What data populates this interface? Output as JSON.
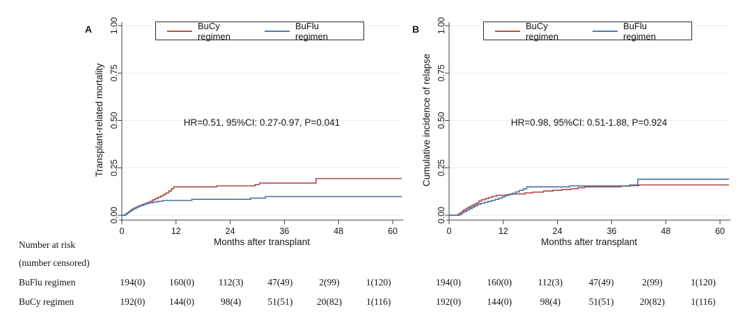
{
  "legend": {
    "items": [
      {
        "label": "BuCy regimen",
        "color": "#b05150"
      },
      {
        "label": "BuFlu regimen",
        "color": "#537aa5"
      }
    ]
  },
  "colors": {
    "grid": "#e2edf0",
    "axis": "#3c3c3c",
    "text": "#161616"
  },
  "chart_data": [
    {
      "type": "line",
      "step": true,
      "panel": "A",
      "ylabel": "Transplant-related mortality",
      "xlabel": "Months after transplant",
      "annotation": "HR=0.51, 95%CI: 0.27-0.97, P=0.041",
      "xlim": [
        0,
        62
      ],
      "ylim": [
        0,
        1
      ],
      "x_ticks": [
        0,
        12,
        24,
        36,
        48,
        60
      ],
      "y_ticks": [
        0,
        0.25,
        0.5,
        0.75,
        1
      ],
      "y_tick_labels": [
        "0.00",
        "0.25",
        "0.50",
        "0.75",
        "1.00"
      ],
      "grid": true,
      "legend_position": "top",
      "series": [
        {
          "name": "BuCy regimen",
          "color": "#b05150",
          "points": [
            [
              0,
              0
            ],
            [
              0.7,
              0.005
            ],
            [
              1.1,
              0.012
            ],
            [
              1.5,
              0.018
            ],
            [
              1.9,
              0.025
            ],
            [
              2.3,
              0.032
            ],
            [
              2.8,
              0.038
            ],
            [
              3.3,
              0.044
            ],
            [
              3.8,
              0.05
            ],
            [
              4.4,
              0.056
            ],
            [
              5,
              0.061
            ],
            [
              5.6,
              0.067
            ],
            [
              6.2,
              0.074
            ],
            [
              6.8,
              0.081
            ],
            [
              7.4,
              0.088
            ],
            [
              8,
              0.095
            ],
            [
              8.6,
              0.102
            ],
            [
              9.2,
              0.11
            ],
            [
              9.8,
              0.118
            ],
            [
              10.4,
              0.128
            ],
            [
              11,
              0.14
            ],
            [
              11.5,
              0.15
            ],
            [
              21,
              0.155
            ],
            [
              29.5,
              0.162
            ],
            [
              30.5,
              0.17
            ],
            [
              43,
              0.193
            ],
            [
              62,
              0.193
            ]
          ]
        },
        {
          "name": "BuFlu regimen",
          "color": "#537aa5",
          "points": [
            [
              0,
              0
            ],
            [
              0.8,
              0.005
            ],
            [
              1.2,
              0.012
            ],
            [
              1.6,
              0.02
            ],
            [
              2,
              0.028
            ],
            [
              2.5,
              0.035
            ],
            [
              3,
              0.041
            ],
            [
              3.6,
              0.047
            ],
            [
              4.2,
              0.052
            ],
            [
              4.8,
              0.057
            ],
            [
              5.4,
              0.062
            ],
            [
              6,
              0.066
            ],
            [
              7,
              0.07
            ],
            [
              8,
              0.074
            ],
            [
              9,
              0.078
            ],
            [
              15.5,
              0.084
            ],
            [
              28.5,
              0.09
            ],
            [
              31.8,
              0.098
            ],
            [
              62,
              0.098
            ]
          ]
        }
      ]
    },
    {
      "type": "line",
      "step": true,
      "panel": "B",
      "ylabel": "Cumulative incidence of relapse",
      "xlabel": "Months after transplant",
      "annotation": "HR=0.98, 95%CI: 0.51-1.88, P=0.924",
      "xlim": [
        0,
        62
      ],
      "ylim": [
        0,
        1
      ],
      "x_ticks": [
        0,
        12,
        24,
        36,
        48,
        60
      ],
      "y_ticks": [
        0,
        0.25,
        0.5,
        0.75,
        1
      ],
      "y_tick_labels": [
        "0.00",
        "0.25",
        "0.50",
        "0.75",
        "1.00"
      ],
      "grid": true,
      "legend_position": "top",
      "series": [
        {
          "name": "BuCy regimen",
          "color": "#b05150",
          "points": [
            [
              0,
              0
            ],
            [
              2,
              0.006
            ],
            [
              2.4,
              0.012
            ],
            [
              2.8,
              0.02
            ],
            [
              3.2,
              0.028
            ],
            [
              3.7,
              0.035
            ],
            [
              4.2,
              0.042
            ],
            [
              4.8,
              0.05
            ],
            [
              5.4,
              0.057
            ],
            [
              6,
              0.065
            ],
            [
              6.6,
              0.075
            ],
            [
              7.2,
              0.082
            ],
            [
              8,
              0.088
            ],
            [
              8.8,
              0.094
            ],
            [
              9.6,
              0.1
            ],
            [
              10.5,
              0.105
            ],
            [
              12.5,
              0.108
            ],
            [
              13.5,
              0.112
            ],
            [
              16.8,
              0.118
            ],
            [
              18.5,
              0.122
            ],
            [
              20.9,
              0.128
            ],
            [
              23,
              0.132
            ],
            [
              25,
              0.136
            ],
            [
              27,
              0.14
            ],
            [
              28.5,
              0.145
            ],
            [
              30,
              0.15
            ],
            [
              38,
              0.153
            ],
            [
              40,
              0.156
            ],
            [
              42,
              0.16
            ],
            [
              62,
              0.16
            ]
          ]
        },
        {
          "name": "BuFlu regimen",
          "color": "#537aa5",
          "points": [
            [
              0,
              0
            ],
            [
              2.3,
              0.005
            ],
            [
              2.8,
              0.012
            ],
            [
              3.3,
              0.02
            ],
            [
              3.9,
              0.027
            ],
            [
              4.5,
              0.035
            ],
            [
              5.1,
              0.043
            ],
            [
              5.7,
              0.05
            ],
            [
              6.3,
              0.057
            ],
            [
              7,
              0.063
            ],
            [
              7.8,
              0.068
            ],
            [
              8.6,
              0.073
            ],
            [
              9.4,
              0.078
            ],
            [
              10.2,
              0.084
            ],
            [
              11,
              0.09
            ],
            [
              11.8,
              0.097
            ],
            [
              12.4,
              0.104
            ],
            [
              13.2,
              0.11
            ],
            [
              14,
              0.116
            ],
            [
              14.8,
              0.123
            ],
            [
              15.6,
              0.131
            ],
            [
              16.4,
              0.139
            ],
            [
              17.2,
              0.15
            ],
            [
              26.7,
              0.155
            ],
            [
              40,
              0.16
            ],
            [
              41.8,
              0.19
            ],
            [
              62,
              0.19
            ]
          ]
        }
      ]
    }
  ],
  "risk_table": {
    "title_line1": "Number at risk",
    "title_line2": "(number censored)",
    "rows": [
      {
        "label": "BuFlu regimen",
        "panelA": [
          "194(0)",
          "160(0)",
          "112(3)",
          "47(49)",
          "2(99)",
          "1(120)"
        ],
        "panelB": [
          "194(0)",
          "160(0)",
          "112(3)",
          "47(49)",
          "2(99)",
          "1(120)"
        ]
      },
      {
        "label": "BuCy regimen",
        "panelA": [
          "192(0)",
          "144(0)",
          "98(4)",
          "51(51)",
          "20(82)",
          "1(116)"
        ],
        "panelB": [
          "192(0)",
          "144(0)",
          "98(4)",
          "51(51)",
          "20(82)",
          "1(116)"
        ]
      }
    ]
  }
}
